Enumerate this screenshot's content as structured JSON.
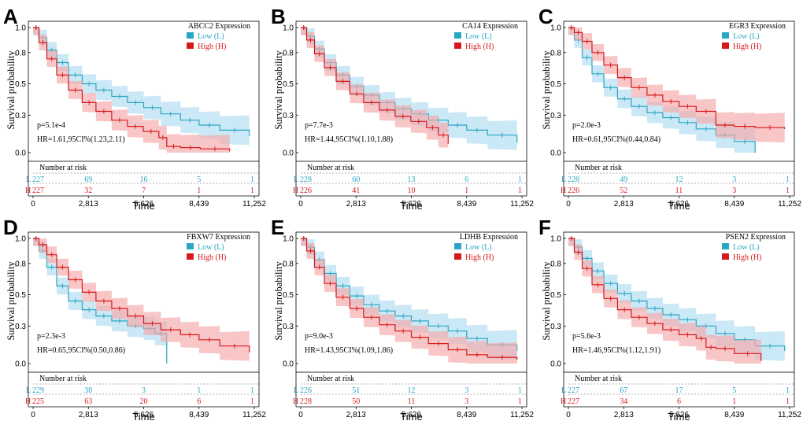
{
  "colors": {
    "low": "#2aa6c4",
    "low_band": "#aedcf0",
    "high": "#d7191c",
    "high_band": "#f4a7a7"
  },
  "chart_data": [
    {
      "type": "line",
      "panel": "A",
      "title": "ABCC2 Expression",
      "ylabel": "Survival probability",
      "xlabel": "Time",
      "xlim": [
        0,
        11252
      ],
      "ylim": [
        0,
        1
      ],
      "yticks": [
        "0.0",
        "0.3",
        "0.5",
        "0.8",
        "1.0"
      ],
      "xticks": [
        "0",
        "2,813",
        "5,626",
        "8,439",
        "11,252"
      ],
      "legend": [
        "Low (L)",
        "High (H)"
      ],
      "pvalue": "p=5.1e-4",
      "hr": "HR=1.61,95CI%(1.23,2.11)",
      "risk_title": "Number at risk",
      "risk_low": [
        "227",
        "69",
        "16",
        "5",
        "1"
      ],
      "risk_high": [
        "227",
        "32",
        "7",
        "1",
        "1"
      ],
      "series": [
        {
          "name": "Low (L)",
          "x": [
            0,
            300,
            700,
            1200,
            1800,
            2500,
            3200,
            4000,
            4800,
            5626,
            6500,
            7500,
            8439,
            9500,
            11000
          ],
          "y": [
            1.0,
            0.92,
            0.82,
            0.72,
            0.62,
            0.55,
            0.5,
            0.45,
            0.4,
            0.36,
            0.31,
            0.26,
            0.22,
            0.18,
            0.13
          ]
        },
        {
          "name": "High (H)",
          "x": [
            0,
            300,
            700,
            1200,
            1800,
            2500,
            3200,
            4000,
            4800,
            5600,
            6400,
            6800,
            7500,
            8500,
            10000
          ],
          "y": [
            1.0,
            0.88,
            0.75,
            0.62,
            0.5,
            0.4,
            0.33,
            0.26,
            0.21,
            0.17,
            0.12,
            0.05,
            0.04,
            0.03,
            0.01
          ]
        }
      ]
    },
    {
      "type": "line",
      "panel": "B",
      "title": "CA14 Expression",
      "ylabel": "Survival probability",
      "xlabel": "Time",
      "xlim": [
        0,
        11252
      ],
      "ylim": [
        0,
        1
      ],
      "yticks": [
        "0.0",
        "0.3",
        "0.5",
        "0.8",
        "1.0"
      ],
      "xticks": [
        "0",
        "2,813",
        "5,626",
        "8,439",
        "11,252"
      ],
      "legend": [
        "Low (L)",
        "High (H)"
      ],
      "pvalue": "p=7.7e-3",
      "hr": "HR=1.44,95CI%(1.10,1.88)",
      "risk_title": "Number at risk",
      "risk_low": [
        "228",
        "60",
        "13",
        "6",
        "1"
      ],
      "risk_high": [
        "226",
        "41",
        "10",
        "1",
        "1"
      ],
      "series": [
        {
          "name": "Low (L)",
          "x": [
            0,
            300,
            700,
            1200,
            1800,
            2500,
            3200,
            4000,
            4800,
            5626,
            6500,
            7500,
            8439,
            9500,
            11000
          ],
          "y": [
            1.0,
            0.93,
            0.83,
            0.72,
            0.62,
            0.53,
            0.46,
            0.4,
            0.35,
            0.31,
            0.26,
            0.22,
            0.18,
            0.14,
            0.08
          ]
        },
        {
          "name": "High (H)",
          "x": [
            0,
            300,
            700,
            1200,
            1800,
            2500,
            3200,
            4000,
            4800,
            5600,
            6400,
            7000,
            7500
          ],
          "y": [
            1.0,
            0.9,
            0.79,
            0.68,
            0.57,
            0.47,
            0.4,
            0.34,
            0.29,
            0.25,
            0.2,
            0.14,
            0.07
          ]
        }
      ]
    },
    {
      "type": "line",
      "panel": "C",
      "title": "EGR3 Expression",
      "ylabel": "Survival probability",
      "xlabel": "Time",
      "xlim": [
        0,
        11252
      ],
      "ylim": [
        0,
        1
      ],
      "yticks": [
        "0.0",
        "0.3",
        "0.5",
        "0.8",
        "1.0"
      ],
      "xticks": [
        "0",
        "2,813",
        "5,626",
        "8,439",
        "11,252"
      ],
      "legend": [
        "Low (L)",
        "High (H)"
      ],
      "pvalue": "p=2.0e-3",
      "hr": "HR=0.61,95CI%(0.44,0.84)",
      "risk_title": "Number at risk",
      "risk_low": [
        "228",
        "49",
        "12",
        "3",
        "1"
      ],
      "risk_high": [
        "226",
        "52",
        "11",
        "3",
        "1"
      ],
      "series": [
        {
          "name": "Low (L)",
          "x": [
            0,
            300,
            700,
            1200,
            1800,
            2500,
            3200,
            4000,
            4800,
            5626,
            6500,
            7500,
            8439,
            9500
          ],
          "y": [
            1.0,
            0.9,
            0.76,
            0.63,
            0.52,
            0.43,
            0.37,
            0.32,
            0.28,
            0.24,
            0.19,
            0.14,
            0.09,
            0.0
          ]
        },
        {
          "name": "High (H)",
          "x": [
            0,
            300,
            700,
            1200,
            1800,
            2500,
            3200,
            4000,
            4800,
            5626,
            6500,
            7500,
            8439,
            9500,
            11000
          ],
          "y": [
            1.0,
            0.96,
            0.89,
            0.8,
            0.7,
            0.6,
            0.52,
            0.46,
            0.41,
            0.37,
            0.33,
            0.22,
            0.21,
            0.2,
            0.19
          ]
        }
      ]
    },
    {
      "type": "line",
      "panel": "D",
      "title": "FBXW7 Expression",
      "ylabel": "Survival probability",
      "xlabel": "Time",
      "xlim": [
        0,
        11252
      ],
      "ylim": [
        0,
        1
      ],
      "yticks": [
        "0.0",
        "0.3",
        "0.5",
        "0.8",
        "1.0"
      ],
      "xticks": [
        "0",
        "2,813",
        "5,626",
        "8,439",
        "11,252"
      ],
      "legend": [
        "Low (L)",
        "High (H)"
      ],
      "pvalue": "p=2.3e-3",
      "hr": "HR=0.65,95CI%(0.50,0.86)",
      "risk_title": "Number at risk",
      "risk_low": [
        "229",
        "38",
        "3",
        "1",
        "1"
      ],
      "risk_high": [
        "225",
        "63",
        "20",
        "6",
        "1"
      ],
      "series": [
        {
          "name": "Low (L)",
          "x": [
            0,
            300,
            700,
            1200,
            1800,
            2500,
            3200,
            4000,
            4800,
            5626,
            6200,
            6800
          ],
          "y": [
            1.0,
            0.9,
            0.77,
            0.62,
            0.5,
            0.43,
            0.38,
            0.34,
            0.3,
            0.28,
            0.24,
            0.0
          ]
        },
        {
          "name": "High (H)",
          "x": [
            0,
            300,
            700,
            1200,
            1800,
            2500,
            3200,
            4000,
            4800,
            5626,
            6500,
            7500,
            8439,
            9500,
            11000
          ],
          "y": [
            1.0,
            0.95,
            0.87,
            0.77,
            0.67,
            0.57,
            0.5,
            0.44,
            0.38,
            0.32,
            0.27,
            0.23,
            0.19,
            0.14,
            0.09
          ]
        }
      ]
    },
    {
      "type": "line",
      "panel": "E",
      "title": "LDHB Expression",
      "ylabel": "Survival probability",
      "xlabel": "Time",
      "xlim": [
        0,
        11252
      ],
      "ylim": [
        0,
        1
      ],
      "yticks": [
        "0.0",
        "0.3",
        "0.5",
        "0.8",
        "1.0"
      ],
      "xticks": [
        "0",
        "2,813",
        "5,626",
        "8,439",
        "11,252"
      ],
      "legend": [
        "Low (L)",
        "High (H)"
      ],
      "pvalue": "p=9.0e-3",
      "hr": "HR=1.43,95CI%(1.09,1.86)",
      "risk_title": "Number at risk",
      "risk_low": [
        "226",
        "51",
        "12",
        "3",
        "1"
      ],
      "risk_high": [
        "228",
        "50",
        "11",
        "3",
        "1"
      ],
      "series": [
        {
          "name": "Low (L)",
          "x": [
            0,
            300,
            700,
            1200,
            1800,
            2500,
            3200,
            4000,
            4800,
            5626,
            6500,
            7500,
            8439,
            9500,
            11000
          ],
          "y": [
            1.0,
            0.93,
            0.83,
            0.72,
            0.62,
            0.54,
            0.47,
            0.42,
            0.38,
            0.34,
            0.3,
            0.26,
            0.2,
            0.15,
            0.1
          ]
        },
        {
          "name": "High (H)",
          "x": [
            0,
            300,
            700,
            1200,
            1800,
            2500,
            3200,
            4000,
            4800,
            5626,
            6500,
            7500,
            8439,
            9500,
            11000
          ],
          "y": [
            1.0,
            0.9,
            0.77,
            0.64,
            0.53,
            0.44,
            0.37,
            0.31,
            0.26,
            0.21,
            0.16,
            0.11,
            0.07,
            0.05,
            0.03
          ]
        }
      ]
    },
    {
      "type": "line",
      "panel": "F",
      "title": "PSEN2 Expression",
      "ylabel": "Survival probability",
      "xlabel": "Time",
      "xlim": [
        0,
        11252
      ],
      "ylim": [
        0,
        1
      ],
      "yticks": [
        "0.0",
        "0.3",
        "0.5",
        "0.8",
        "1.0"
      ],
      "xticks": [
        "0",
        "2,813",
        "5,626",
        "8,439",
        "11,252"
      ],
      "legend": [
        "Low (L)",
        "High (H)"
      ],
      "pvalue": "p=5.6e-3",
      "hr": "HR=1.46,95CI%(1.12,1.91)",
      "risk_title": "Number at risk",
      "risk_low": [
        "227",
        "67",
        "17",
        "5",
        "1"
      ],
      "risk_high": [
        "227",
        "34",
        "6",
        "1",
        "1"
      ],
      "series": [
        {
          "name": "Low (L)",
          "x": [
            0,
            300,
            700,
            1200,
            1800,
            2500,
            3200,
            4000,
            4800,
            5626,
            6500,
            7500,
            8439,
            9500,
            11000
          ],
          "y": [
            1.0,
            0.93,
            0.84,
            0.74,
            0.64,
            0.56,
            0.5,
            0.44,
            0.39,
            0.35,
            0.3,
            0.24,
            0.19,
            0.14,
            0.1
          ]
        },
        {
          "name": "High (H)",
          "x": [
            0,
            300,
            700,
            1200,
            1800,
            2500,
            3200,
            4000,
            4800,
            5626,
            6500,
            7000,
            7500,
            8439,
            9800
          ],
          "y": [
            1.0,
            0.89,
            0.76,
            0.63,
            0.52,
            0.43,
            0.37,
            0.32,
            0.27,
            0.23,
            0.2,
            0.13,
            0.12,
            0.08,
            0.02
          ]
        }
      ]
    }
  ]
}
